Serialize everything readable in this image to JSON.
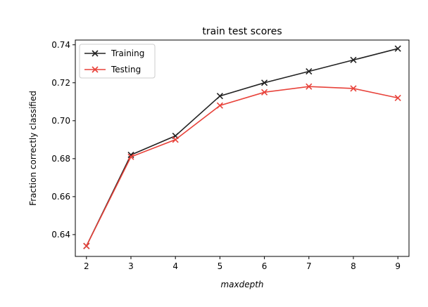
{
  "chart_data": {
    "type": "line",
    "title": "train test scores",
    "xlabel": "maxdepth",
    "ylabel": "Fraction correctly classified",
    "x": [
      2,
      3,
      4,
      5,
      6,
      7,
      8,
      9
    ],
    "xlim": [
      1.75,
      9.25
    ],
    "ylim": [
      0.6285,
      0.7425
    ],
    "xticks": [
      2,
      3,
      4,
      5,
      6,
      7,
      8,
      9
    ],
    "yticks": [
      0.64,
      0.66,
      0.68,
      0.7,
      0.72,
      0.74
    ],
    "ytick_labels": [
      "0.64",
      "0.66",
      "0.68",
      "0.70",
      "0.72",
      "0.74"
    ],
    "grid": false,
    "legend": "top-left",
    "series": [
      {
        "name": "Training",
        "color": "#222222",
        "marker": "x",
        "values": [
          0.634,
          0.682,
          0.692,
          0.713,
          0.72,
          0.726,
          0.732,
          0.738
        ]
      },
      {
        "name": "Testing",
        "color": "#e8423a",
        "marker": "x",
        "values": [
          0.634,
          0.681,
          0.69,
          0.708,
          0.715,
          0.718,
          0.717,
          0.712
        ]
      }
    ]
  }
}
